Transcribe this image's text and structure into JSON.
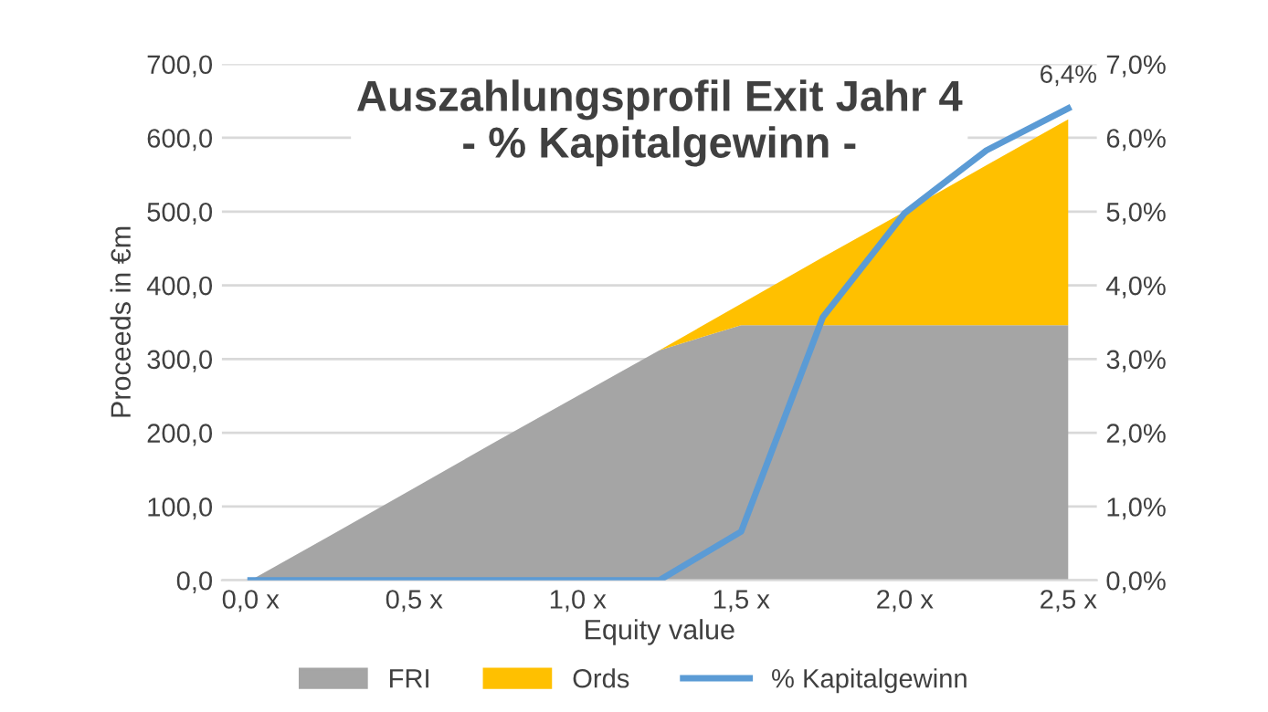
{
  "chart_data": {
    "type": "area",
    "title": "Auszahlungsprofil Exit Jahr 4\n- % Kapitalgewinn -",
    "xlabel": "Equity value",
    "ylabel": "Proceeds in €m",
    "categories": [
      "0,0 x",
      null,
      "0,5 x",
      null,
      "1,0 x",
      null,
      "1,5 x",
      null,
      "2,0 x",
      null,
      "2,5 x"
    ],
    "stacked": true,
    "series": [
      {
        "name": "FRI",
        "color": "#a5a5a5",
        "values": [
          0,
          62,
          125,
          188,
          250,
          312,
          346,
          346,
          346,
          346,
          346
        ]
      },
      {
        "name": "Ords",
        "color": "#ffc000",
        "values": [
          0,
          0,
          0,
          0,
          0,
          0,
          29,
          92,
          154,
          217,
          279
        ]
      },
      {
        "name": "% Kapitalgewinn",
        "type": "line",
        "axis": "y2",
        "color": "#5b9bd5",
        "values": [
          0,
          0,
          0,
          0,
          0,
          0,
          0.66,
          3.57,
          4.98,
          5.83,
          6.4
        ],
        "value_labels": [
          null,
          null,
          null,
          null,
          null,
          null,
          null,
          null,
          null,
          null,
          "6,4%"
        ]
      }
    ],
    "ylim": [
      0,
      700
    ],
    "yticks": [
      {
        "value": 0,
        "label": "0,0"
      },
      {
        "value": 100,
        "label": "100,0"
      },
      {
        "value": 200,
        "label": "200,0"
      },
      {
        "value": 300,
        "label": "300,0"
      },
      {
        "value": 400,
        "label": "400,0"
      },
      {
        "value": 500,
        "label": "500,0"
      },
      {
        "value": 600,
        "label": "600,0"
      },
      {
        "value": 700,
        "label": "700,0"
      }
    ],
    "y2lim": [
      0,
      7
    ],
    "y2ticks": [
      {
        "value": 0,
        "label": "0,0%"
      },
      {
        "value": 1,
        "label": "1,0%"
      },
      {
        "value": 2,
        "label": "2,0%"
      },
      {
        "value": 3,
        "label": "3,0%"
      },
      {
        "value": 4,
        "label": "4,0%"
      },
      {
        "value": 5,
        "label": "5,0%"
      },
      {
        "value": 6,
        "label": "6,0%"
      },
      {
        "value": 7,
        "label": "7,0%"
      }
    ],
    "grid": "y",
    "legend": "bottom",
    "marker": "none",
    "line_style": "solid"
  }
}
